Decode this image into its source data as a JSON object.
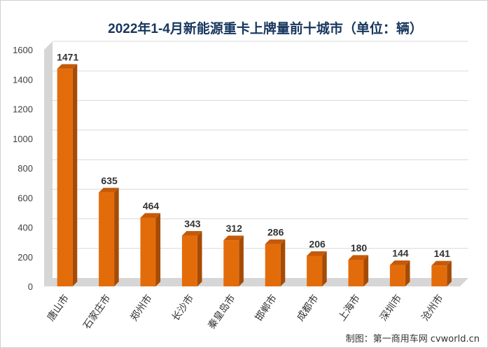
{
  "chart_data": {
    "type": "bar",
    "title": "2022年1-4月新能源重卡上牌量前十城市（单位：辆）",
    "categories": [
      "唐山市",
      "石家庄市",
      "郑州市",
      "长沙市",
      "秦皇岛市",
      "邯郸市",
      "成都市",
      "上海市",
      "深圳市",
      "沧州市"
    ],
    "values": [
      1471,
      635,
      464,
      343,
      312,
      286,
      206,
      180,
      144,
      141
    ],
    "ylim": [
      0,
      1600
    ],
    "yticks": [
      0,
      200,
      400,
      600,
      800,
      1000,
      1200,
      1400,
      1600
    ],
    "grid": true,
    "legend": "none",
    "colors": {
      "front": "#e36c0a",
      "side": "#a64b06",
      "top": "#c55a0a",
      "wall": "#d6d6d6",
      "grid": "#d9d9d9"
    }
  },
  "credit": "制图：第一商用车网 cvworld.cn"
}
